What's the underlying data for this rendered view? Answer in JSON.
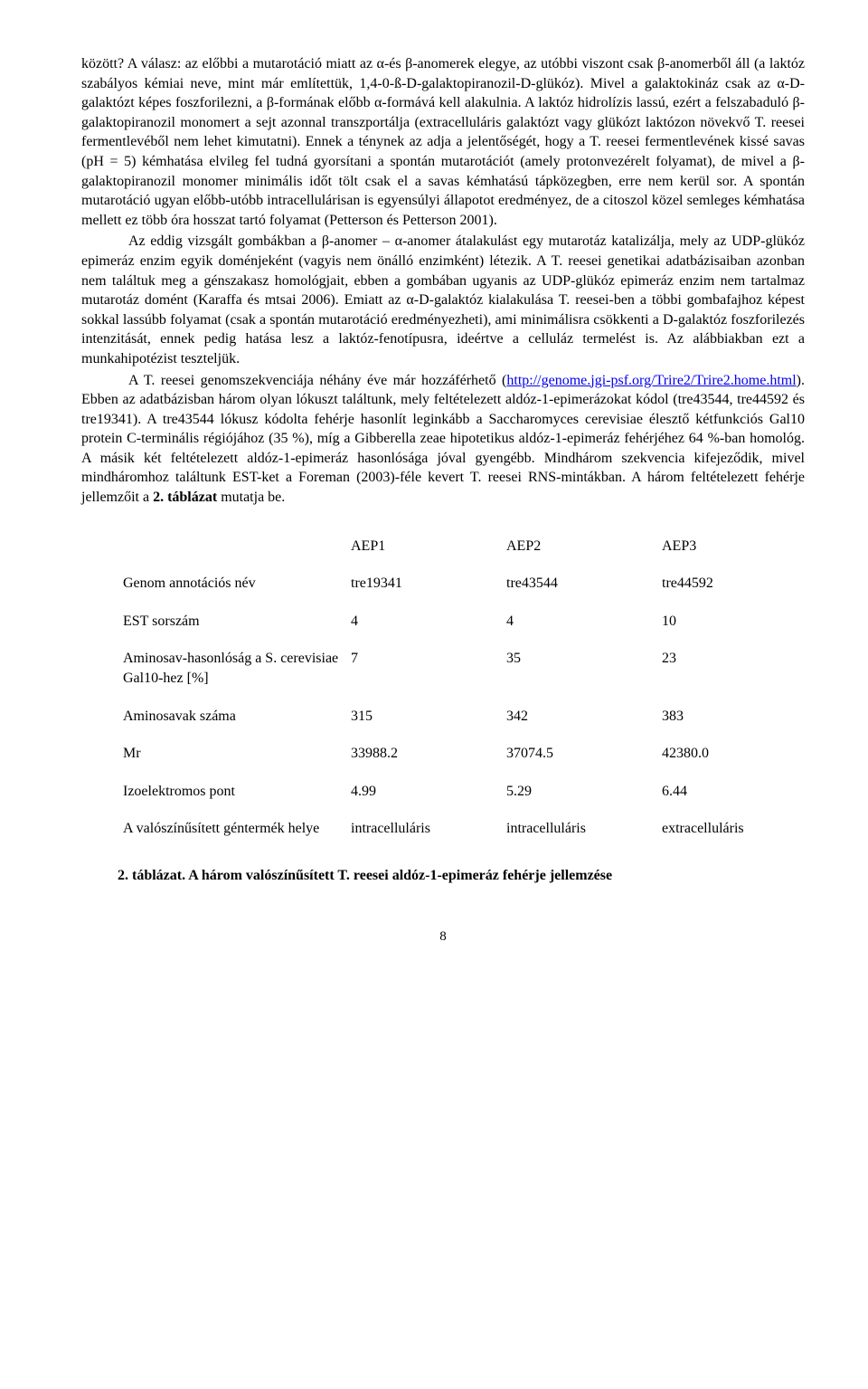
{
  "p1": "között? A válasz: az előbbi a mutarotáció miatt az α-és β-anomerek elegye, az utóbbi viszont csak β-anomerből áll (a laktóz szabályos kémiai neve, mint már említettük, 1,4-0-ß-D-galaktopiranozil-D-glükóz). Mivel a galaktokináz csak az α-D-galaktózt képes foszforilezni, a β-formának előbb α-formává kell alakulnia. A laktóz hidrolízis lassú, ezért a felszabaduló β-galaktopiranozil monomert a sejt azonnal transzportálja (extracelluláris galaktózt vagy glükózt laktózon növekvő T. reesei fermentlevéből nem lehet kimutatni). Ennek a ténynek az adja a jelentőségét, hogy a T. reesei fermentlevének kissé savas (pH = 5) kémhatása elvileg fel tudná gyorsítani a spontán mutarotációt (amely protonvezérelt folyamat), de mivel a β-galaktopiranozil monomer minimális időt tölt csak el a savas kémhatású tápközegben, erre nem kerül sor. A spontán mutarotáció ugyan előbb-utóbb intracellulárisan is egyensúlyi állapotot eredményez, de a citoszol közel semleges kémhatása mellett ez több óra hosszat tartó folyamat (Petterson és Petterson 2001).",
  "p2": "Az eddig vizsgált gombákban a β-anomer – α-anomer átalakulást egy mutarotáz katalizálja, mely az UDP-glükóz epimeráz enzim egyik doménjeként (vagyis nem önálló enzimként) létezik. A T. reesei genetikai adatbázisaiban azonban nem találtuk meg a génszakasz homológjait, ebben a gombában ugyanis az UDP-glükóz epimeráz enzim nem tartalmaz mutarotáz domént (Karaffa és mtsai 2006). Emiatt az α-D-galaktóz kialakulása T. reesei-ben a többi gombafajhoz képest sokkal lassúbb folyamat (csak a spontán mutarotáció eredményezheti), ami minimálisra csökkenti a D-galaktóz foszforilezés intenzitását, ennek pedig hatása lesz a laktóz-fenotípusra, ideértve a celluláz termelést is. Az alábbiakban ezt a munkahipotézist teszteljük.",
  "p3a": "A T. reesei genomszekvenciája néhány éve már hozzáférhető (",
  "p3link": "http://genome.jgi-psf.org/Trire2/Trire2.home.html",
  "p3b": "). Ebben az adatbázisban három olyan lókuszt találtunk, mely feltételezett aldóz-1-epimerázokat kódol (tre43544, tre44592 és tre19341). A tre43544 lókusz kódolta fehérje hasonlít leginkább a Saccharomyces cerevisiae élesztő kétfunkciós Gal10 protein C-terminális régiójához (35 %), míg a Gibberella zeae hipotetikus aldóz-1-epimeráz fehérjéhez 64 %-ban homológ. A másik két feltételezett aldóz-1-epimeráz hasonlósága jóval gyengébb. Mindhárom szekvencia kifejeződik, mivel mindháromhoz találtunk EST-ket a Foreman (2003)-féle kevert T. reesei RNS-mintákban. A három feltételezett fehérje jellemzőit a ",
  "p3c": "2. táblázat",
  "p3d": " mutatja be.",
  "table": {
    "header": [
      "",
      "AEP1",
      "AEP2",
      "AEP3"
    ],
    "rows": [
      [
        "Genom annotációs név",
        "tre19341",
        "tre43544",
        "tre44592"
      ],
      [
        "EST sorszám",
        "4",
        "4",
        "10"
      ],
      [
        "Aminosav-hasonlóság a  S. cerevisiae Gal10-hez [%]",
        "7",
        "35",
        "23"
      ],
      [
        "Aminosavak száma",
        "315",
        "342",
        "383"
      ],
      [
        "Mr",
        "33988.2",
        "37074.5",
        "42380.0"
      ],
      [
        "Izoelektromos pont",
        "4.99",
        "5.29",
        "6.44"
      ],
      [
        "A valószínűsített géntermék helye",
        "intracelluláris",
        "intracelluláris",
        "extracelluláris"
      ]
    ]
  },
  "caption": "2. táblázat. A három valószínűsített T. reesei aldóz-1-epimeráz fehérje jellemzése",
  "pagenum": "8"
}
